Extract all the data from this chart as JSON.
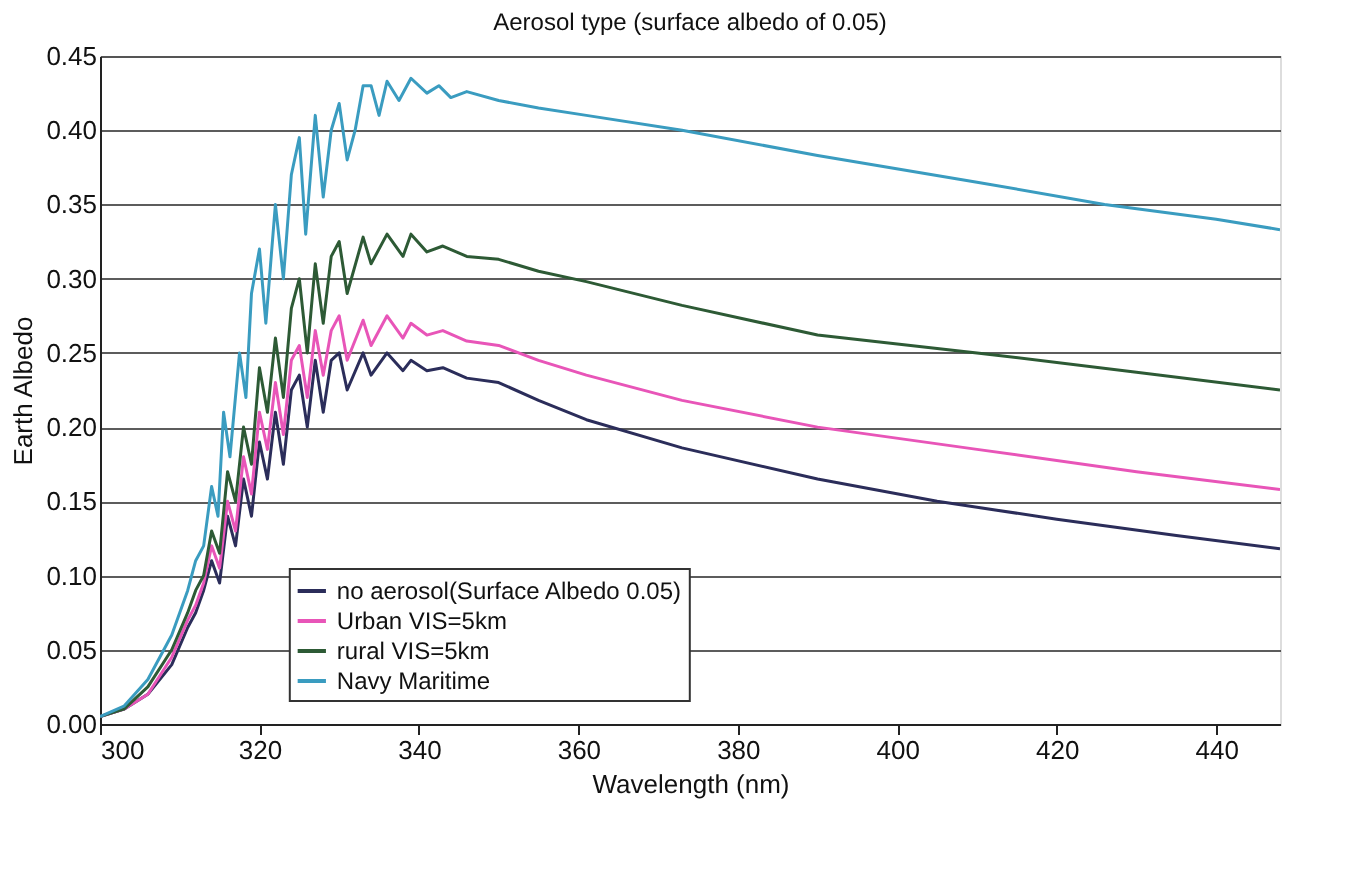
{
  "chart_data": {
    "type": "line",
    "title": "Aerosol type (surface albedo of 0.05)",
    "xlabel": "Wavelength (nm)",
    "ylabel": "Earth Albedo",
    "xlim": [
      300,
      448
    ],
    "xticks": [
      300,
      320,
      340,
      360,
      380,
      400,
      420,
      440
    ],
    "ylim": [
      0,
      0.45
    ],
    "yticks": [
      {
        "value": 0,
        "label": "0.00"
      },
      {
        "value": 0.05,
        "label": "0.05"
      },
      {
        "value": 0.1,
        "label": "0.10"
      },
      {
        "value": 0.15,
        "label": "0.15"
      },
      {
        "value": 0.2,
        "label": "0.20"
      },
      {
        "value": 0.25,
        "label": "0.25"
      },
      {
        "value": 0.3,
        "label": "0.30"
      },
      {
        "value": 0.35,
        "label": "0.35"
      },
      {
        "value": 0.4,
        "label": "0.40"
      },
      {
        "value": 0.45,
        "label": "0.45"
      }
    ],
    "grid": "y",
    "legend": "bottom",
    "marker": "none",
    "line_style": "solid",
    "series": [
      {
        "name": "no aerosol(Surface Albedo 0.05)",
        "color": "#2b2d5a",
        "x": [
          300,
          303,
          306,
          309,
          311,
          312,
          313,
          314,
          315,
          316,
          317,
          318,
          319,
          320,
          321,
          322,
          323,
          324,
          325,
          326,
          327,
          328,
          329,
          330,
          331,
          333,
          334,
          336,
          338,
          339,
          341,
          343,
          346,
          350,
          355,
          361,
          373,
          390,
          405,
          420,
          435,
          448
        ],
        "values": [
          0.005,
          0.01,
          0.02,
          0.04,
          0.065,
          0.075,
          0.09,
          0.11,
          0.095,
          0.14,
          0.12,
          0.165,
          0.14,
          0.19,
          0.165,
          0.21,
          0.175,
          0.225,
          0.235,
          0.2,
          0.245,
          0.21,
          0.245,
          0.25,
          0.225,
          0.25,
          0.235,
          0.25,
          0.238,
          0.245,
          0.238,
          0.24,
          0.233,
          0.23,
          0.218,
          0.205,
          0.186,
          0.165,
          0.15,
          0.138,
          0.127,
          0.118
        ]
      },
      {
        "name": "Urban VIS=5km",
        "color": "#e855b8",
        "x": [
          300,
          303,
          306,
          309,
          311,
          312,
          313,
          314,
          315,
          316,
          317,
          318,
          319,
          320,
          321,
          322,
          323,
          324,
          325,
          326,
          327,
          328,
          329,
          330,
          331,
          333,
          334,
          336,
          338,
          339,
          341,
          343,
          346,
          350,
          355,
          361,
          373,
          390,
          410,
          430,
          448
        ],
        "values": [
          0.005,
          0.01,
          0.02,
          0.045,
          0.07,
          0.08,
          0.095,
          0.12,
          0.105,
          0.15,
          0.13,
          0.18,
          0.155,
          0.21,
          0.185,
          0.23,
          0.195,
          0.245,
          0.255,
          0.22,
          0.265,
          0.235,
          0.265,
          0.275,
          0.245,
          0.272,
          0.255,
          0.275,
          0.26,
          0.27,
          0.262,
          0.265,
          0.258,
          0.255,
          0.245,
          0.235,
          0.218,
          0.2,
          0.185,
          0.17,
          0.158
        ]
      },
      {
        "name": "rural VIS=5km",
        "color": "#2d5a35",
        "x": [
          300,
          303,
          306,
          309,
          311,
          312,
          313,
          314,
          315,
          316,
          317,
          318,
          319,
          320,
          321,
          322,
          323,
          324,
          325,
          326,
          327,
          328,
          329,
          330,
          331,
          333,
          334,
          336,
          338,
          339,
          341,
          343,
          346,
          350,
          355,
          361,
          373,
          390,
          410,
          430,
          448
        ],
        "values": [
          0.005,
          0.01,
          0.025,
          0.05,
          0.075,
          0.09,
          0.1,
          0.13,
          0.115,
          0.17,
          0.15,
          0.2,
          0.175,
          0.24,
          0.21,
          0.26,
          0.22,
          0.28,
          0.3,
          0.25,
          0.31,
          0.27,
          0.315,
          0.325,
          0.29,
          0.328,
          0.31,
          0.33,
          0.315,
          0.33,
          0.318,
          0.322,
          0.315,
          0.313,
          0.305,
          0.298,
          0.282,
          0.262,
          0.25,
          0.237,
          0.225
        ]
      },
      {
        "name": "Navy Maritime",
        "color": "#3a9cc0",
        "x": [
          300,
          303,
          306,
          309,
          311,
          312,
          313,
          314,
          314.8,
          315.5,
          316.3,
          317.5,
          318.3,
          319,
          320,
          320.8,
          322,
          323,
          324,
          325,
          325.8,
          327,
          328,
          329,
          330,
          331,
          332,
          333,
          334,
          335,
          336,
          337.5,
          339,
          341,
          342.5,
          344,
          346,
          350,
          355,
          361,
          373,
          390,
          410,
          426,
          440,
          448
        ],
        "values": [
          0.005,
          0.012,
          0.03,
          0.06,
          0.09,
          0.11,
          0.12,
          0.16,
          0.14,
          0.21,
          0.18,
          0.25,
          0.22,
          0.29,
          0.32,
          0.27,
          0.35,
          0.3,
          0.37,
          0.395,
          0.33,
          0.41,
          0.355,
          0.4,
          0.418,
          0.38,
          0.4,
          0.43,
          0.43,
          0.41,
          0.433,
          0.42,
          0.435,
          0.425,
          0.43,
          0.422,
          0.426,
          0.42,
          0.415,
          0.41,
          0.4,
          0.383,
          0.365,
          0.35,
          0.34,
          0.333
        ]
      }
    ]
  }
}
